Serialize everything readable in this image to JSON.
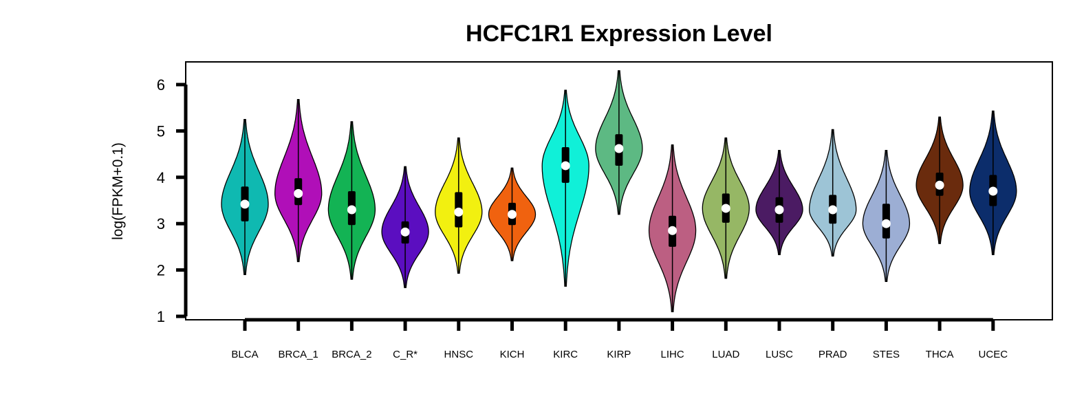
{
  "chart_data": {
    "type": "violin",
    "title": "HCFC1R1 Expression Level",
    "xlabel": "",
    "ylabel": "log(FPKM+0.1)",
    "ylim": [
      1,
      6
    ],
    "yticks": [
      "1",
      "2",
      "3",
      "4",
      "5",
      "6"
    ],
    "categories": [
      "BLCA",
      "BRCA_1",
      "BRCA_2",
      "C_R*",
      "HNSC",
      "KICH",
      "KIRC",
      "KIRP",
      "LIHC",
      "LUAD",
      "LUSC",
      "PRAD",
      "STES",
      "THCA",
      "UCEC"
    ],
    "series": [
      {
        "category": "BLCA",
        "color": "#0fb9b1",
        "min": 1.9,
        "max": 5.25,
        "q1": 3.05,
        "median": 3.42,
        "q3": 3.8,
        "mode": 3.42
      },
      {
        "category": "BRCA_1",
        "color": "#b00fb8",
        "min": 2.18,
        "max": 5.68,
        "q1": 3.4,
        "median": 3.65,
        "q3": 3.98,
        "mode": 3.65
      },
      {
        "category": "BRCA_2",
        "color": "#13b354",
        "min": 1.8,
        "max": 5.2,
        "q1": 2.97,
        "median": 3.3,
        "q3": 3.7,
        "mode": 3.3
      },
      {
        "category": "C_R*",
        "color": "#5b0ec0",
        "min": 1.62,
        "max": 4.23,
        "q1": 2.57,
        "median": 2.82,
        "q3": 3.05,
        "mode": 2.82
      },
      {
        "category": "HNSC",
        "color": "#f2f010",
        "min": 1.93,
        "max": 4.85,
        "q1": 2.92,
        "median": 3.25,
        "q3": 3.68,
        "mode": 3.25
      },
      {
        "category": "KICH",
        "color": "#f0620f",
        "min": 2.2,
        "max": 4.2,
        "q1": 2.97,
        "median": 3.2,
        "q3": 3.45,
        "mode": 3.2
      },
      {
        "category": "KIRC",
        "color": "#10f0d8",
        "min": 1.65,
        "max": 5.88,
        "q1": 3.88,
        "median": 4.25,
        "q3": 4.65,
        "mode": 4.25
      },
      {
        "category": "KIRP",
        "color": "#5db983",
        "min": 3.2,
        "max": 6.3,
        "q1": 4.25,
        "median": 4.62,
        "q3": 4.93,
        "mode": 4.62
      },
      {
        "category": "LIHC",
        "color": "#bc5f82",
        "min": 1.1,
        "max": 4.7,
        "q1": 2.5,
        "median": 2.85,
        "q3": 3.17,
        "mode": 2.85
      },
      {
        "category": "LUAD",
        "color": "#96b765",
        "min": 1.82,
        "max": 4.85,
        "q1": 3.02,
        "median": 3.33,
        "q3": 3.65,
        "mode": 3.33
      },
      {
        "category": "LUSC",
        "color": "#4b1b63",
        "min": 2.33,
        "max": 4.58,
        "q1": 3.02,
        "median": 3.3,
        "q3": 3.57,
        "mode": 3.3
      },
      {
        "category": "PRAD",
        "color": "#9dc4d6",
        "min": 2.3,
        "max": 5.03,
        "q1": 3.0,
        "median": 3.3,
        "q3": 3.62,
        "mode": 3.3
      },
      {
        "category": "STES",
        "color": "#9caed4",
        "min": 1.75,
        "max": 4.58,
        "q1": 2.68,
        "median": 3.0,
        "q3": 3.43,
        "mode": 3.0
      },
      {
        "category": "THCA",
        "color": "#6a2b0d",
        "min": 2.57,
        "max": 5.3,
        "q1": 3.6,
        "median": 3.83,
        "q3": 4.1,
        "mode": 3.83
      },
      {
        "category": "UCEC",
        "color": "#0c2d6b",
        "min": 2.33,
        "max": 5.43,
        "q1": 3.38,
        "median": 3.7,
        "q3": 4.05,
        "mode": 3.7
      }
    ],
    "grid": false,
    "legend": "none"
  }
}
